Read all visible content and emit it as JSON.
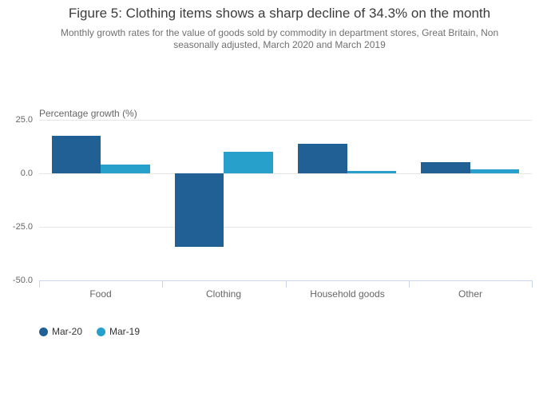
{
  "chart_data": {
    "type": "bar",
    "title": "Figure 5: Clothing items shows a sharp decline of 34.3% on the month",
    "subtitle_lines": [
      "Monthly growth rates for the value of goods sold by commodity in department stores, Great Britain, Non",
      "seasonally adjusted, March 2020 and March 2019"
    ],
    "ylabel": "Percentage growth (%)",
    "xlabel": "",
    "categories": [
      "Food",
      "Clothing",
      "Household goods",
      "Other"
    ],
    "series": [
      {
        "name": "Mar-20",
        "color": "#206095",
        "values": [
          17.5,
          -34.3,
          13.8,
          5.1
        ]
      },
      {
        "name": "Mar-19",
        "color": "#27a0cc",
        "values": [
          4.2,
          10.2,
          1.3,
          1.9
        ]
      }
    ],
    "yticks": [
      25,
      0,
      -25,
      -50
    ],
    "ytick_labels": [
      "25.0",
      "0.0",
      "-25.0",
      "-50.0"
    ],
    "ylim": [
      -50,
      25
    ],
    "grid": true,
    "legend_position": "bottom-left"
  },
  "colors": {
    "title_text": "#3b3b3b",
    "subtitle_text": "#707070",
    "axis_text": "#666666",
    "legend_text": "#333333",
    "grid_line": "#e6e6e6",
    "axis_line": "#ccd6eb",
    "background": "#ffffff"
  }
}
